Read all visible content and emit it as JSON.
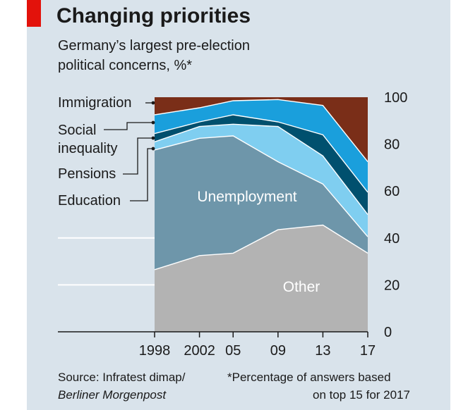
{
  "header": {
    "title": "Changing priorities",
    "subtitle_line1": "Germany’s largest pre-election",
    "subtitle_line2": "political concerns, %*"
  },
  "footer": {
    "source_line1": "Source: Infratest dimap/",
    "source_line2": "Berliner Morgenpost",
    "note_line1": "*Percentage of answers based",
    "note_line2": "on top 15 for 2017"
  },
  "colors": {
    "background": "#d9e3eb",
    "accent_tag": "#e3120b",
    "other": "#b3b3b3",
    "unemployment": "#6e96aa",
    "education": "#7fcef0",
    "pensions": "#00506e",
    "social_inequality": "#1a9fdc",
    "immigration": "#7a2e18"
  },
  "chart_data": {
    "type": "area",
    "stacked": true,
    "title": "Changing priorities",
    "subtitle": "Germany’s largest pre-election political concerns, %*",
    "x": [
      1998,
      2002,
      2005,
      2009,
      2013,
      2017
    ],
    "x_tick_labels": [
      "1998",
      "2002",
      "05",
      "09",
      "13",
      "17"
    ],
    "y_ticks": [
      0,
      20,
      40,
      60,
      80,
      100
    ],
    "ylim": [
      0,
      100
    ],
    "y_axis_side": "right",
    "series": [
      {
        "name": "Other",
        "label": "Other",
        "color": "#b3b3b3",
        "values": [
          26.5,
          32.5,
          33.5,
          43.5,
          45.5,
          33.5
        ]
      },
      {
        "name": "Unemployment",
        "label": "Unemployment",
        "color": "#6e96aa",
        "values": [
          51,
          50,
          50,
          29,
          17.5,
          7
        ]
      },
      {
        "name": "Education",
        "label": "Education",
        "color": "#7fcef0",
        "values": [
          3.5,
          5,
          5,
          15,
          12,
          9.5
        ]
      },
      {
        "name": "Pensions",
        "label": "Pensions",
        "color": "#00506e",
        "values": [
          3.5,
          2,
          4,
          2,
          9,
          9.5
        ]
      },
      {
        "name": "Social inequality",
        "label": "Social\ninequality",
        "color": "#1a9fdc",
        "values": [
          8,
          6,
          6,
          9.5,
          12.5,
          13
        ]
      },
      {
        "name": "Immigration",
        "label": "Immigration",
        "color": "#7a2e18",
        "values": [
          7.5,
          4.5,
          1.5,
          1,
          3.5,
          27.5
        ]
      }
    ],
    "inline_labels": [
      "Unemployment",
      "Other"
    ],
    "legend_labels": [
      "Immigration",
      "Social",
      "inequality",
      "Pensions",
      "Education"
    ]
  }
}
